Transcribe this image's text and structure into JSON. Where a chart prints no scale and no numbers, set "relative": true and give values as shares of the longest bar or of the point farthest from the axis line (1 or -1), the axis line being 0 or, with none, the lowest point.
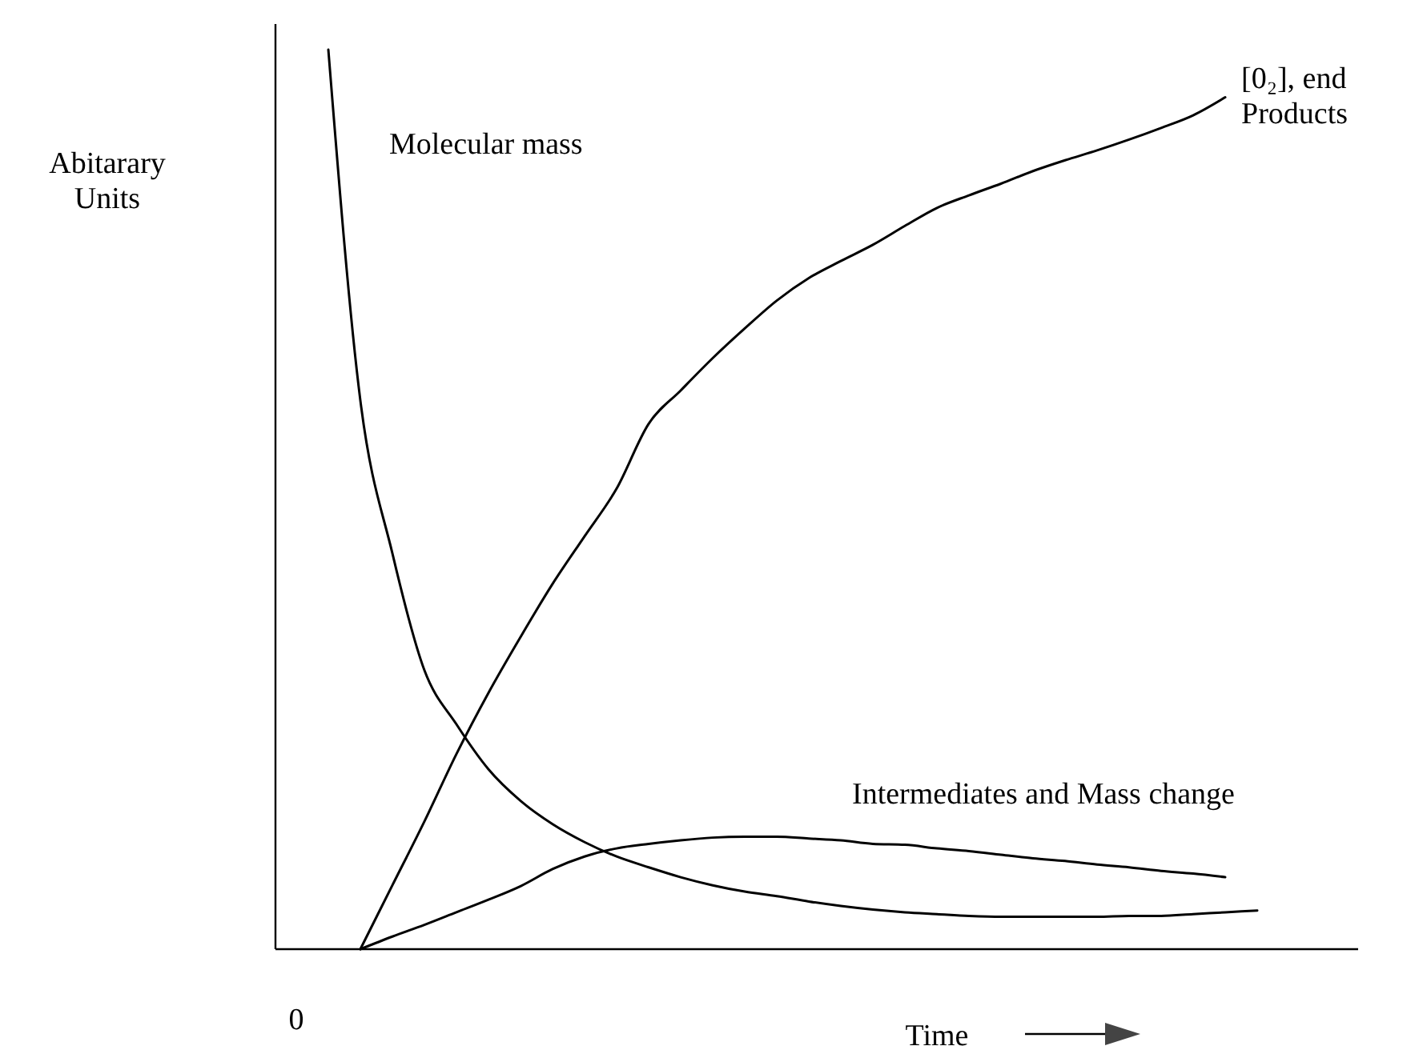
{
  "chart_data": {
    "type": "line",
    "relative": true,
    "xlabel": "Time",
    "ylabel": "Abitarary Units",
    "annotations": [
      "0"
    ],
    "categories": [
      null,
      null,
      null,
      null,
      null,
      null,
      null,
      null,
      null,
      null,
      null,
      null,
      null,
      null,
      null,
      null,
      null,
      null,
      null,
      null,
      null,
      null,
      null,
      null,
      null,
      null,
      null,
      null,
      null,
      null,
      null
    ],
    "series": [
      {
        "name": "Molecular mass",
        "color": "#000000",
        "values": [
          null,
          1.0,
          0.61,
          0.44,
          0.31,
          0.25,
          0.2,
          0.165,
          0.139,
          0.119,
          0.103,
          0.091,
          0.08,
          0.071,
          0.064,
          0.059,
          0.053,
          0.048,
          0.044,
          0.041,
          0.039,
          0.037,
          0.036,
          0.036,
          0.036,
          0.036,
          0.037,
          0.037,
          0.039,
          0.041,
          0.043
        ]
      },
      {
        "name": "[0₂], end Products",
        "color": "#000000",
        "values": [
          null,
          null,
          0,
          0.071,
          0.142,
          0.217,
          0.285,
          0.347,
          0.406,
          0.459,
          0.512,
          0.584,
          0.621,
          0.657,
          0.69,
          0.721,
          0.746,
          0.765,
          0.783,
          0.804,
          0.824,
          0.838,
          0.851,
          0.865,
          0.877,
          0.888,
          0.9,
          0.913,
          0.927,
          0.947,
          null
        ]
      },
      {
        "name": "Intermediates and Mass change",
        "color": "#000000",
        "values": [
          null,
          null,
          0,
          0.014,
          0.027,
          0.041,
          0.055,
          0.07,
          0.089,
          0.103,
          0.112,
          0.117,
          0.121,
          0.124,
          0.125,
          0.125,
          0.123,
          0.121,
          0.117,
          0.116,
          0.112,
          0.109,
          0.105,
          0.101,
          0.098,
          0.094,
          0.091,
          0.087,
          0.084,
          0.08,
          null
        ]
      }
    ]
  }
}
